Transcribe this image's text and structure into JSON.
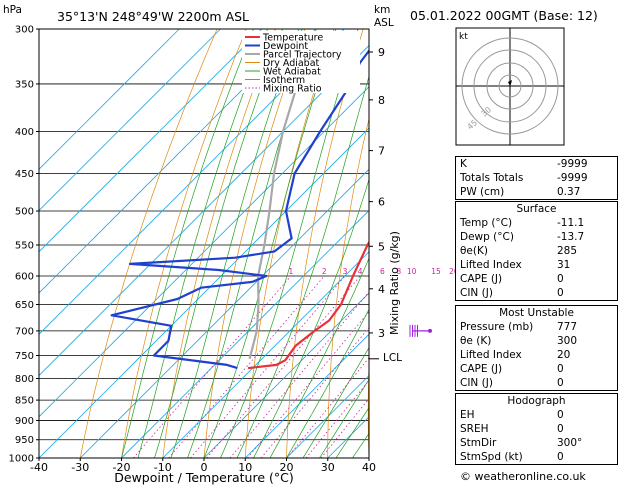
{
  "header": {
    "left_title": "35°13'N  248°49'W  2200m  ASL",
    "right_title": "05.01.2022  00GMT  (Base: 12)",
    "hpa_label": "hPa",
    "km_label": "km",
    "asl_label": "ASL"
  },
  "axes": {
    "xlabel": "Dewpoint / Temperature (°C)",
    "right_label": "Mixing Ratio (g/kg)",
    "x_ticks": [
      "-40",
      "-30",
      "-20",
      "-10",
      "0",
      "10",
      "20",
      "30",
      "40"
    ],
    "p_ticks": [
      "300",
      "350",
      "400",
      "450",
      "500",
      "550",
      "600",
      "650",
      "700",
      "750",
      "800",
      "850",
      "900",
      "950",
      "1000"
    ],
    "km_ticks": [
      {
        "label": "9",
        "p": 320
      },
      {
        "label": "8",
        "p": 366
      },
      {
        "label": "7",
        "p": 422
      },
      {
        "label": "6",
        "p": 487
      },
      {
        "label": "5",
        "p": 552
      },
      {
        "label": "4",
        "p": 622
      },
      {
        "label": "3",
        "p": 704
      }
    ],
    "lcl_label": "LCL",
    "lcl_p": 757,
    "mixing_ratio_labels": [
      "1",
      "2",
      "3",
      "4",
      "6",
      "8",
      "10",
      "15",
      "20",
      "25"
    ]
  },
  "legend": [
    "Temperature",
    "Dewpoint",
    "Parcel Trajectory",
    "Dry Adiabat",
    "Wet Adiabat",
    "Isotherm",
    "Mixing Ratio"
  ],
  "colors": {
    "temperature": "#e8303a",
    "dewpoint": "#2040d0",
    "parcel": "#a8a8a8",
    "dry_adiabat": "#e08a10",
    "wet_adiabat": "#20a020",
    "isotherm": "#20a8e8",
    "mixing_ratio": "#d020a0",
    "wind": "#a020e0"
  },
  "chart_data": {
    "type": "line",
    "xlim": [
      -40,
      40
    ],
    "plim": [
      300,
      1000
    ],
    "p_scale": "log",
    "skew": "skew-T",
    "series": [
      {
        "name": "Temperature",
        "points": [
          [
            300,
            -45
          ],
          [
            350,
            -37
          ],
          [
            400,
            -28
          ],
          [
            450,
            -21
          ],
          [
            500,
            -15
          ],
          [
            550,
            -12
          ],
          [
            600,
            -8
          ],
          [
            650,
            -4
          ],
          [
            680,
            -3
          ],
          [
            700,
            -4
          ],
          [
            730,
            -5
          ],
          [
            760,
            -4
          ],
          [
            770,
            -5
          ],
          [
            777,
            -11.1
          ]
        ]
      },
      {
        "name": "Dewpoint",
        "points": [
          [
            300,
            -60
          ],
          [
            330,
            -58
          ],
          [
            350,
            -55
          ],
          [
            400,
            -51
          ],
          [
            450,
            -47
          ],
          [
            500,
            -40
          ],
          [
            540,
            -32
          ],
          [
            560,
            -33
          ],
          [
            570,
            -41
          ],
          [
            580,
            -65
          ],
          [
            590,
            -42
          ],
          [
            600,
            -29
          ],
          [
            610,
            -31
          ],
          [
            620,
            -42
          ],
          [
            640,
            -45
          ],
          [
            670,
            -57
          ],
          [
            690,
            -40
          ],
          [
            720,
            -37
          ],
          [
            750,
            -37
          ],
          [
            770,
            -17
          ],
          [
            777,
            -13.7
          ]
        ]
      },
      {
        "name": "Parcel Trajectory",
        "points": [
          [
            300,
            -77
          ],
          [
            350,
            -68
          ],
          [
            400,
            -60
          ],
          [
            450,
            -52
          ],
          [
            500,
            -44
          ],
          [
            550,
            -37
          ],
          [
            600,
            -31
          ],
          [
            650,
            -24
          ],
          [
            700,
            -18
          ],
          [
            757,
            -13
          ]
        ]
      }
    ]
  },
  "indices": [
    {
      "label": "K",
      "value": "-9999"
    },
    {
      "label": "Totals Totals",
      "value": "-9999"
    },
    {
      "label": "PW (cm)",
      "value": "0.37"
    }
  ],
  "surface": {
    "title": "Surface",
    "rows": [
      {
        "label": "Temp (°C)",
        "value": "-11.1"
      },
      {
        "label": "Dewp (°C)",
        "value": "-13.7"
      },
      {
        "label": "θe(K)",
        "value": "285"
      },
      {
        "label": "Lifted Index",
        "value": "31"
      },
      {
        "label": "CAPE (J)",
        "value": "0"
      },
      {
        "label": "CIN (J)",
        "value": "0"
      }
    ]
  },
  "most_unstable": {
    "title": "Most Unstable",
    "rows": [
      {
        "label": "Pressure (mb)",
        "value": "777"
      },
      {
        "label": "θe (K)",
        "value": "300"
      },
      {
        "label": "Lifted Index",
        "value": "20"
      },
      {
        "label": "CAPE (J)",
        "value": "0"
      },
      {
        "label": "CIN (J)",
        "value": "0"
      }
    ]
  },
  "hodograph": {
    "title": "Hodograph",
    "box_label": "kt",
    "ring_labels": [
      "30",
      "45"
    ],
    "rows": [
      {
        "label": "EH",
        "value": "0"
      },
      {
        "label": "SREH",
        "value": "0"
      },
      {
        "label": "StmDir",
        "value": "300°"
      },
      {
        "label": "StmSpd (kt)",
        "value": "0"
      }
    ]
  },
  "footer": "© weatheronline.co.uk"
}
